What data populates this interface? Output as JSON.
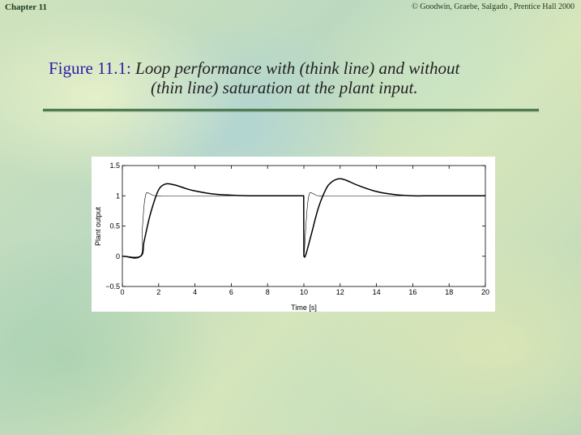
{
  "header": {
    "chapter": "Chapter 11",
    "copyright": "© Goodwin, Graebe, Salgado , Prentice Hall 2000"
  },
  "figure": {
    "label": "Figure 11.1:",
    "caption_line1": "Loop performance with (think line) and without",
    "caption_line2": "(thin line) saturation at the plant input."
  },
  "colors": {
    "figure_label": "#2b1aa8",
    "rule": "#4e7d52"
  },
  "chart_data": {
    "type": "line",
    "title": "",
    "xlabel": "Time [s]",
    "ylabel": "Plant output",
    "xlim": [
      0,
      20
    ],
    "ylim": [
      -0.5,
      1.5
    ],
    "xticks": [
      0,
      2,
      4,
      6,
      8,
      10,
      12,
      14,
      16,
      18,
      20
    ],
    "yticks": [
      -0.5,
      0,
      0.5,
      1,
      1.5
    ],
    "xtick_labels": [
      "0",
      "2",
      "4",
      "6",
      "8",
      "10",
      "12",
      "14",
      "16",
      "18",
      "20"
    ],
    "ytick_labels": [
      "−0.5",
      "0",
      "0.5",
      "1",
      "1.5"
    ],
    "grid": false,
    "series": [
      {
        "style": "thick",
        "x": [
          0,
          1,
          1.2,
          1.5,
          1.8,
          2.0,
          2.2,
          2.5,
          3.0,
          3.5,
          4.0,
          5.0,
          6.0,
          7.0,
          8.0,
          9.0,
          9.99,
          10.0,
          10.1,
          10.4,
          10.8,
          11.2,
          11.5,
          11.9,
          12.3,
          13.0,
          14.0,
          15.0,
          16.0,
          17.0,
          18.0,
          20.0
        ],
        "y": [
          0,
          0,
          0.25,
          0.65,
          0.95,
          1.1,
          1.17,
          1.2,
          1.17,
          1.12,
          1.08,
          1.03,
          1.01,
          1.0,
          1.0,
          1.0,
          1.0,
          0.0,
          0.02,
          0.35,
          0.8,
          1.1,
          1.22,
          1.28,
          1.26,
          1.17,
          1.07,
          1.02,
          1.0,
          1.0,
          1.0,
          1.0
        ]
      },
      {
        "style": "thin",
        "x": [
          0,
          1,
          1.1,
          1.2,
          1.3,
          1.4,
          1.6,
          1.8,
          2.2,
          3.0,
          9.99,
          10.0,
          10.1,
          10.2,
          10.3,
          10.4,
          10.6,
          10.8,
          11.2,
          12.0,
          20.0
        ],
        "y": [
          0,
          0,
          0.45,
          0.85,
          1.03,
          1.05,
          1.02,
          1.0,
          1.0,
          1.0,
          1.0,
          0.0,
          0.45,
          0.85,
          1.03,
          1.05,
          1.02,
          1.0,
          1.0,
          1.0,
          1.0
        ]
      }
    ]
  }
}
